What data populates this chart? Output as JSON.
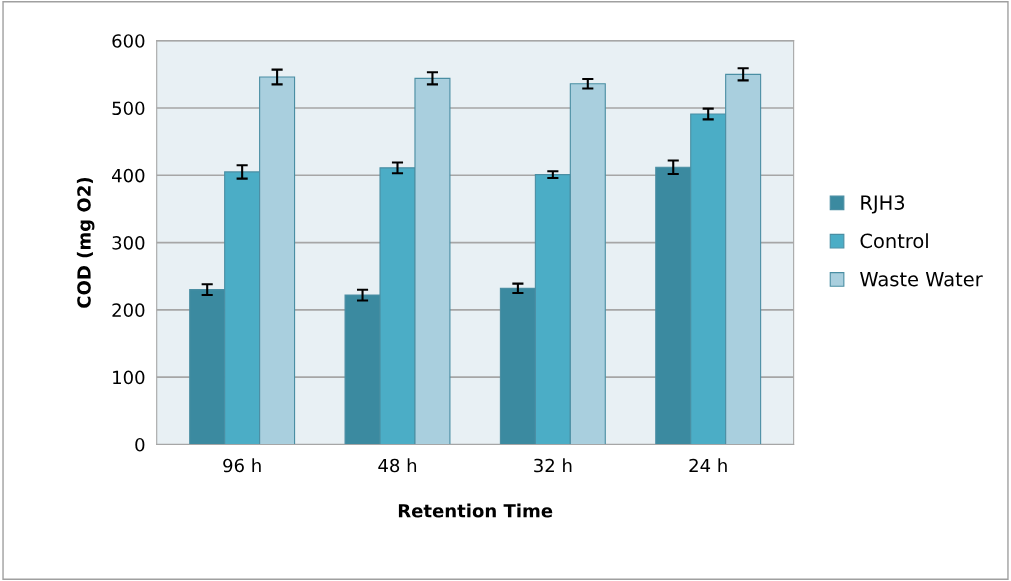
{
  "chart_data": {
    "type": "bar",
    "xlabel": "Retention Time",
    "ylabel": "COD (mg O2)",
    "categories": [
      "96 h",
      "48 h",
      "32 h",
      "24 h"
    ],
    "series": [
      {
        "name": "RJH3",
        "color": "#3b8aa0",
        "values": [
          230,
          222,
          232,
          412
        ],
        "errors": [
          8,
          8,
          7,
          10
        ]
      },
      {
        "name": "Control",
        "color": "#4badc6",
        "values": [
          405,
          411,
          401,
          491
        ],
        "errors": [
          10,
          8,
          5,
          8
        ]
      },
      {
        "name": "Waste Water",
        "color": "#a9cfde",
        "values": [
          546,
          544,
          536,
          550
        ],
        "errors": [
          11,
          9,
          7,
          9
        ]
      }
    ],
    "ylim": [
      0,
      600
    ],
    "yticks": [
      0,
      100,
      200,
      300,
      400,
      500,
      600
    ],
    "grid": "y",
    "legend": "right"
  }
}
